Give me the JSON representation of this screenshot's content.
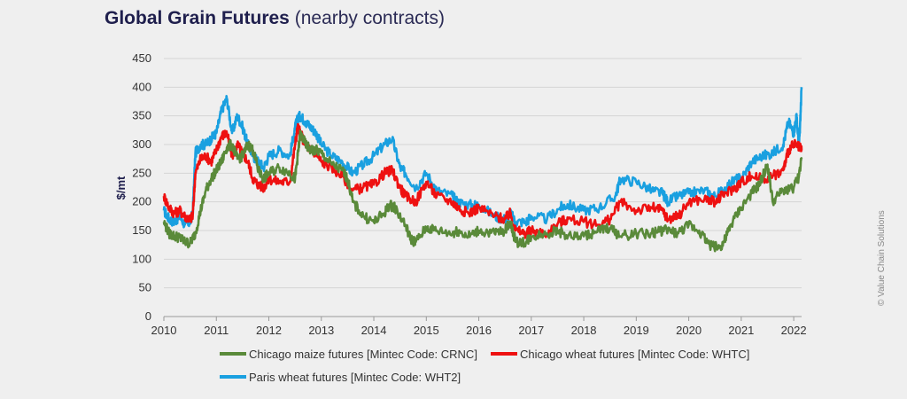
{
  "title": {
    "main": "Global Grain Futures",
    "sub": "(nearby contracts)"
  },
  "credit": "© Value Chain Solutions",
  "chart_data": {
    "type": "line",
    "title": "Global Grain Futures (nearby contracts)",
    "xlabel": "",
    "ylabel": "$/mt",
    "xlim": [
      2010,
      2022.15
    ],
    "ylim": [
      0,
      450
    ],
    "yticks": [
      0,
      50,
      100,
      150,
      200,
      250,
      300,
      350,
      400,
      450
    ],
    "xticks": [
      "2010",
      "2011",
      "2012",
      "2013",
      "2014",
      "2015",
      "2016",
      "2017",
      "2018",
      "2019",
      "2020",
      "2021",
      "2022"
    ],
    "grid": "horizontal",
    "legend": "bottom",
    "colors": {
      "maize": "#5a8a3a",
      "chicago_wheat": "#ee1111",
      "paris_wheat": "#1aa0e0"
    },
    "series": [
      {
        "name": "Chicago maize futures [Mintec Code: CRNC]",
        "key": "maize",
        "x": [
          2010.0,
          2010.1,
          2010.2,
          2010.3,
          2010.4,
          2010.5,
          2010.6,
          2010.7,
          2010.8,
          2010.9,
          2011.0,
          2011.1,
          2011.2,
          2011.3,
          2011.4,
          2011.5,
          2011.6,
          2011.7,
          2011.8,
          2011.9,
          2012.0,
          2012.2,
          2012.4,
          2012.5,
          2012.55,
          2012.6,
          2012.7,
          2012.8,
          2012.9,
          2013.0,
          2013.2,
          2013.4,
          2013.5,
          2013.6,
          2013.8,
          2014.0,
          2014.2,
          2014.3,
          2014.4,
          2014.6,
          2014.7,
          2014.8,
          2015.0,
          2015.2,
          2015.5,
          2015.6,
          2015.8,
          2016.0,
          2016.3,
          2016.5,
          2016.6,
          2016.7,
          2016.9,
          2017.0,
          2017.3,
          2017.5,
          2017.7,
          2018.0,
          2018.3,
          2018.5,
          2018.7,
          2019.0,
          2019.3,
          2019.45,
          2019.6,
          2019.8,
          2020.0,
          2020.2,
          2020.4,
          2020.6,
          2020.7,
          2020.8,
          2021.0,
          2021.2,
          2021.35,
          2021.5,
          2021.6,
          2021.8,
          2022.0,
          2022.1,
          2022.15
        ],
        "values": [
          165,
          145,
          140,
          138,
          130,
          128,
          145,
          185,
          220,
          240,
          255,
          270,
          295,
          300,
          275,
          280,
          300,
          290,
          255,
          240,
          250,
          260,
          250,
          240,
          280,
          320,
          300,
          290,
          290,
          285,
          265,
          255,
          240,
          200,
          175,
          165,
          180,
          195,
          190,
          160,
          135,
          130,
          155,
          150,
          145,
          150,
          140,
          150,
          145,
          150,
          165,
          130,
          130,
          140,
          145,
          150,
          140,
          140,
          150,
          155,
          140,
          145,
          145,
          150,
          150,
          145,
          160,
          150,
          125,
          120,
          135,
          160,
          190,
          215,
          230,
          265,
          200,
          220,
          225,
          245,
          275
        ]
      },
      {
        "name": "Chicago wheat futures [Mintec Code: WHTC]",
        "key": "chicago_wheat",
        "x": [
          2010.0,
          2010.1,
          2010.2,
          2010.3,
          2010.4,
          2010.5,
          2010.55,
          2010.6,
          2010.7,
          2010.8,
          2010.9,
          2011.0,
          2011.1,
          2011.2,
          2011.3,
          2011.4,
          2011.5,
          2011.6,
          2011.7,
          2011.8,
          2011.9,
          2012.0,
          2012.2,
          2012.4,
          2012.5,
          2012.55,
          2012.6,
          2012.7,
          2012.8,
          2012.9,
          2013.0,
          2013.2,
          2013.4,
          2013.6,
          2013.8,
          2014.0,
          2014.2,
          2014.35,
          2014.5,
          2014.6,
          2014.8,
          2015.0,
          2015.2,
          2015.5,
          2015.6,
          2015.8,
          2016.0,
          2016.3,
          2016.5,
          2016.6,
          2016.7,
          2016.9,
          2017.0,
          2017.3,
          2017.55,
          2017.7,
          2018.0,
          2018.3,
          2018.5,
          2018.7,
          2019.0,
          2019.3,
          2019.5,
          2019.6,
          2019.8,
          2020.0,
          2020.3,
          2020.5,
          2020.7,
          2020.9,
          2021.0,
          2021.2,
          2021.4,
          2021.6,
          2021.8,
          2021.9,
          2022.0,
          2022.1,
          2022.15
        ],
        "values": [
          210,
          190,
          180,
          185,
          175,
          170,
          175,
          250,
          275,
          280,
          270,
          290,
          315,
          320,
          280,
          300,
          285,
          270,
          240,
          230,
          225,
          240,
          235,
          235,
          300,
          330,
          320,
          300,
          290,
          285,
          270,
          260,
          245,
          220,
          225,
          230,
          250,
          255,
          225,
          210,
          200,
          235,
          210,
          200,
          190,
          180,
          190,
          175,
          170,
          180,
          150,
          145,
          150,
          145,
          165,
          170,
          165,
          160,
          170,
          200,
          185,
          190,
          185,
          170,
          175,
          200,
          205,
          200,
          215,
          225,
          235,
          245,
          240,
          245,
          255,
          290,
          300,
          295,
          290
        ]
      },
      {
        "name": "Paris wheat futures [Mintec Code: WHT2]",
        "key": "paris_wheat",
        "x": [
          2010.0,
          2010.1,
          2010.2,
          2010.3,
          2010.4,
          2010.5,
          2010.55,
          2010.6,
          2010.7,
          2010.8,
          2010.9,
          2011.0,
          2011.1,
          2011.2,
          2011.3,
          2011.4,
          2011.5,
          2011.6,
          2011.7,
          2011.8,
          2011.9,
          2012.0,
          2012.2,
          2012.4,
          2012.5,
          2012.55,
          2012.6,
          2012.7,
          2012.8,
          2012.9,
          2013.0,
          2013.2,
          2013.4,
          2013.6,
          2013.8,
          2014.0,
          2014.2,
          2014.35,
          2014.5,
          2014.6,
          2014.8,
          2015.0,
          2015.2,
          2015.5,
          2015.6,
          2015.8,
          2016.0,
          2016.3,
          2016.5,
          2016.6,
          2016.7,
          2016.9,
          2017.0,
          2017.3,
          2017.55,
          2017.7,
          2018.0,
          2018.3,
          2018.6,
          2018.7,
          2019.0,
          2019.3,
          2019.5,
          2019.6,
          2019.8,
          2020.0,
          2020.3,
          2020.5,
          2020.7,
          2020.9,
          2021.0,
          2021.2,
          2021.4,
          2021.6,
          2021.8,
          2021.9,
          2022.0,
          2022.05,
          2022.1,
          2022.12,
          2022.15
        ],
        "values": [
          185,
          170,
          165,
          175,
          160,
          165,
          180,
          285,
          300,
          300,
          310,
          320,
          360,
          380,
          320,
          350,
          330,
          300,
          280,
          270,
          260,
          280,
          290,
          280,
          330,
          345,
          350,
          340,
          330,
          320,
          300,
          280,
          270,
          250,
          265,
          280,
          300,
          310,
          260,
          250,
          225,
          250,
          220,
          210,
          200,
          195,
          195,
          175,
          170,
          180,
          165,
          165,
          175,
          170,
          190,
          195,
          185,
          190,
          210,
          240,
          235,
          220,
          215,
          200,
          210,
          215,
          220,
          210,
          225,
          240,
          240,
          270,
          280,
          285,
          300,
          340,
          320,
          350,
          300,
          330,
          400
        ]
      }
    ]
  }
}
